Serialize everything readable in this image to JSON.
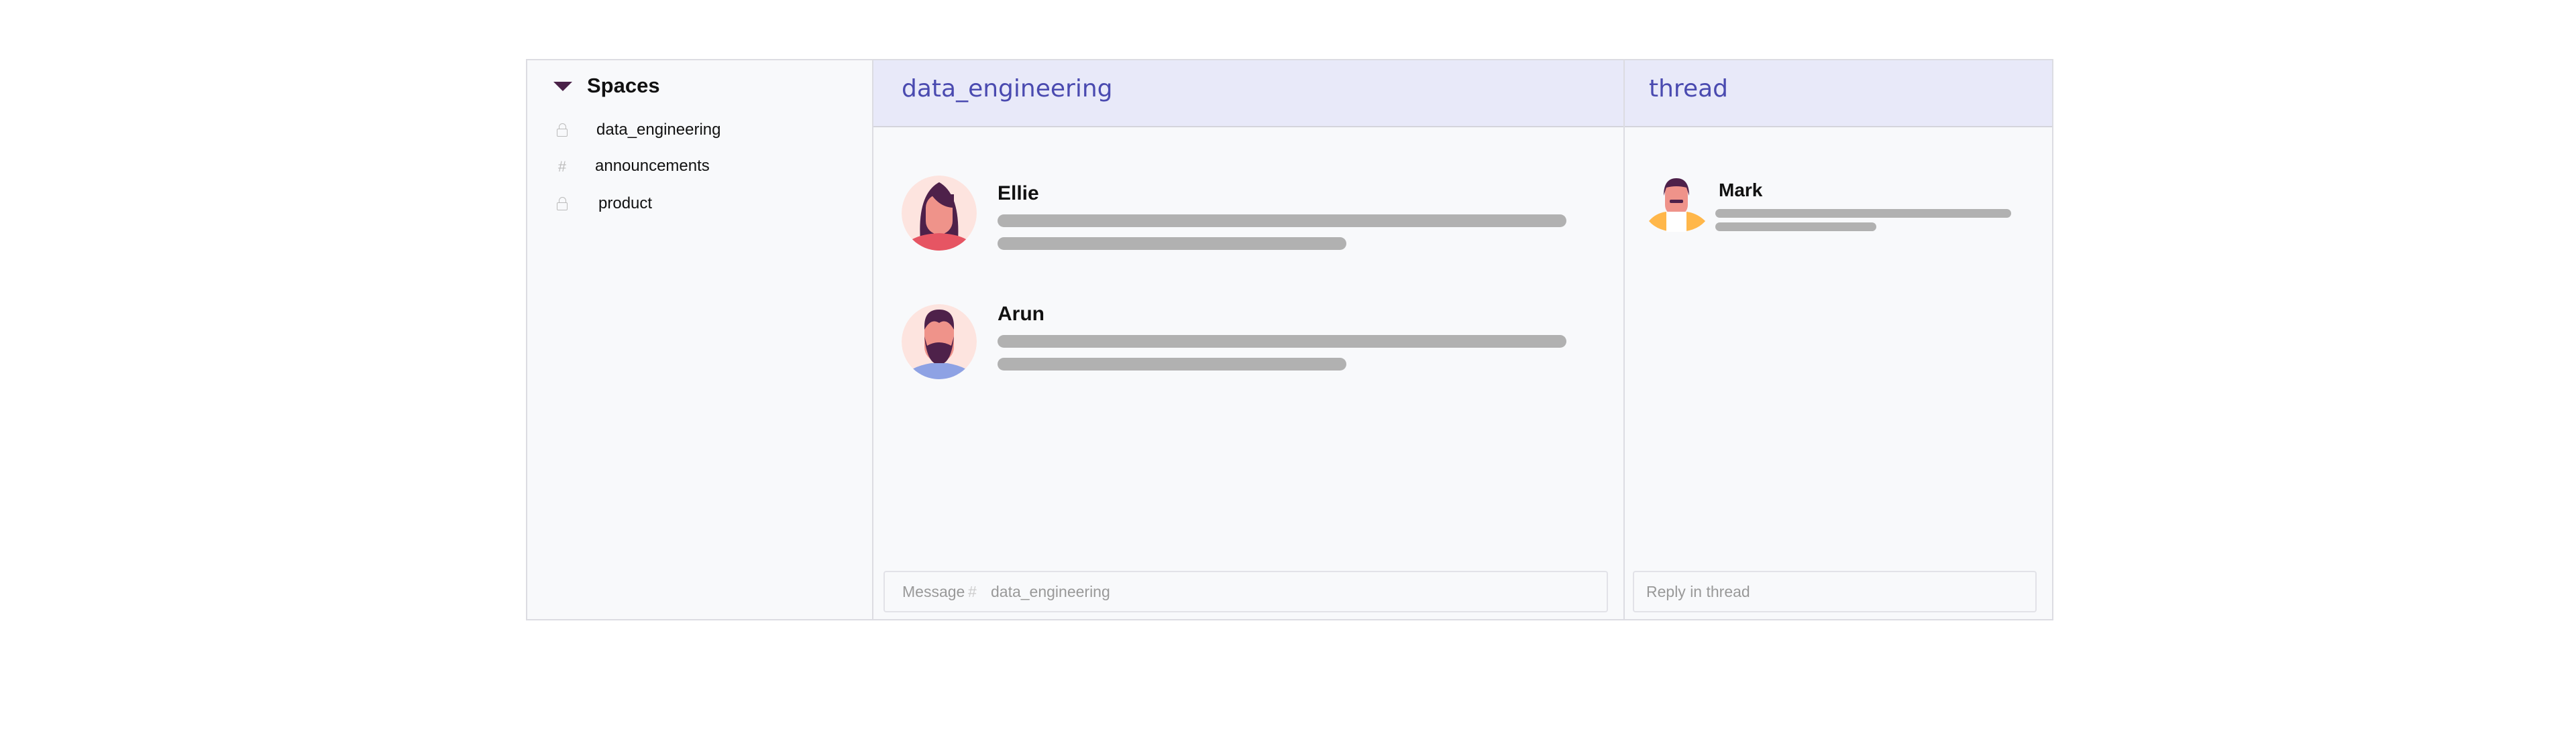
{
  "sidebar": {
    "title": "Spaces",
    "items": [
      {
        "label": "data_engineering",
        "icon": "lock-icon"
      },
      {
        "label": "announcements",
        "icon": "hash-icon"
      },
      {
        "label": "product",
        "icon": "lock-icon"
      }
    ]
  },
  "main": {
    "title": "data_engineering",
    "messages": [
      {
        "author": "Ellie"
      },
      {
        "author": "Arun"
      }
    ],
    "composer": {
      "placeholder_prefix": "Message",
      "hash": "#",
      "channel": "data_engineering"
    }
  },
  "thread": {
    "title": "thread",
    "messages": [
      {
        "author": "Mark"
      }
    ],
    "composer": {
      "placeholder": "Reply in thread"
    }
  },
  "colors": {
    "header_bg": "#e8e9f9",
    "header_text": "#4a4ab0",
    "placeholder_bar": "#b1b1b1"
  }
}
